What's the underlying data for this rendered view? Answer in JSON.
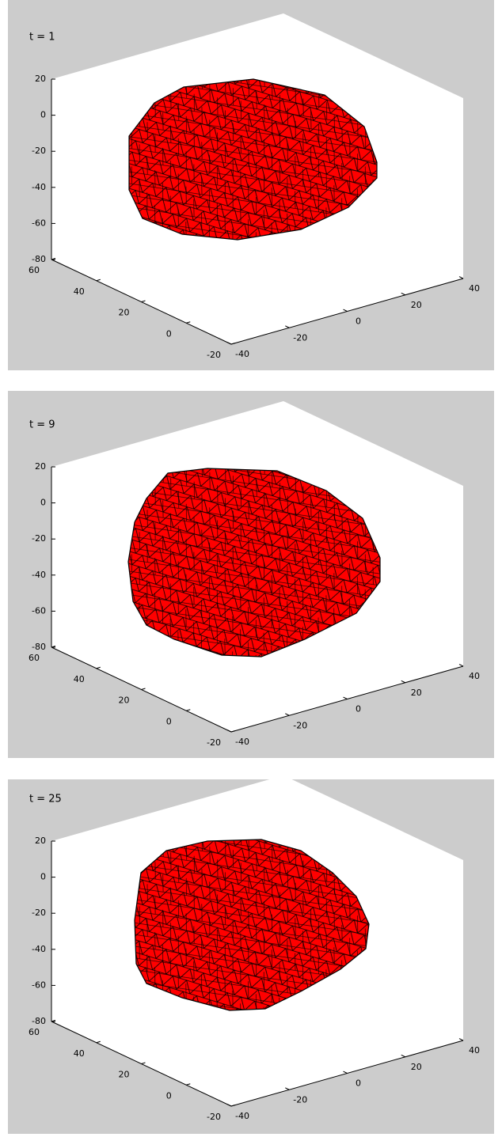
{
  "chart_data": [
    {
      "type": "surface3d",
      "title": "t = 1",
      "xlim": [
        -20,
        60
      ],
      "xticks": [
        60,
        40,
        20,
        0,
        -20
      ],
      "ylim": [
        -40,
        40
      ],
      "yticks": [
        -40,
        -20,
        0,
        20,
        40
      ],
      "zlim": [
        -80,
        20
      ],
      "zticks": [
        20,
        0,
        -20,
        -40,
        -60,
        -80
      ],
      "color": "#ff0000"
    },
    {
      "type": "surface3d",
      "title": "t = 9",
      "xlim": [
        -20,
        60
      ],
      "xticks": [
        60,
        40,
        20,
        0,
        -20
      ],
      "ylim": [
        -40,
        40
      ],
      "yticks": [
        -40,
        -20,
        0,
        20,
        40
      ],
      "zlim": [
        -80,
        20
      ],
      "zticks": [
        20,
        0,
        -20,
        -40,
        -60,
        -80
      ],
      "color": "#ff0000"
    },
    {
      "type": "surface3d",
      "title": "t = 25",
      "xlim": [
        -20,
        60
      ],
      "xticks": [
        60,
        40,
        20,
        0,
        -20
      ],
      "ylim": [
        -40,
        40
      ],
      "yticks": [
        -40,
        -20,
        0,
        20,
        40
      ],
      "zlim": [
        -80,
        20
      ],
      "zticks": [
        20,
        0,
        -20,
        -40,
        -60,
        -80
      ],
      "color": "#ff0000"
    }
  ]
}
